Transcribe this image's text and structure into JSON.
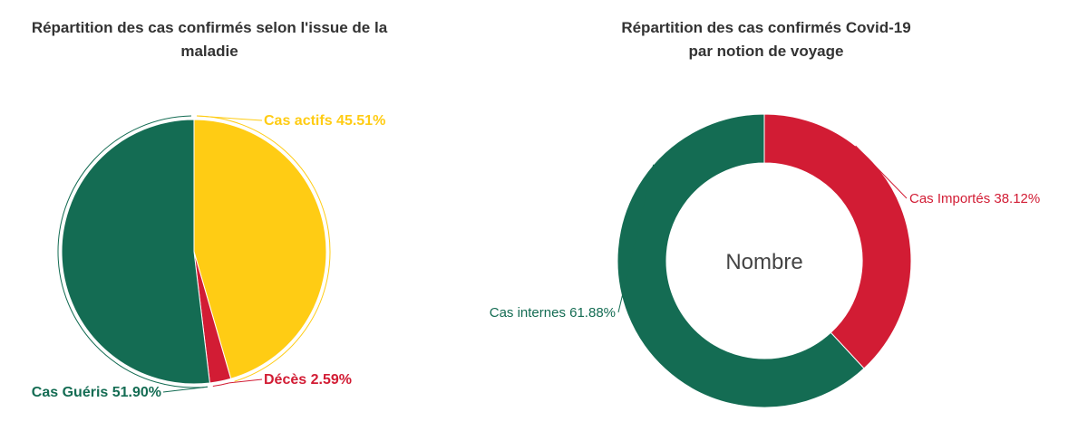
{
  "chart_data": [
    {
      "type": "pie",
      "title": "Répartition des cas confirmés selon l'issue de la maladie",
      "title_lines": [
        "Répartition des cas confirmés selon l'issue de la",
        "maladie"
      ],
      "slices": [
        {
          "label": "Cas actifs 45.51%",
          "value": 45.51,
          "color": "#FFCC14"
        },
        {
          "label": "Décès 2.59%",
          "value": 2.59,
          "color": "#D21C34"
        },
        {
          "label": "Cas Guéris 51.90%",
          "value": 51.9,
          "color": "#146C53"
        }
      ]
    },
    {
      "type": "pie",
      "variant": "donut",
      "title": "Répartition des cas confirmés Covid-19 par notion de voyage",
      "title_lines": [
        "Répartition des cas confirmés Covid-19",
        "par notion de voyage"
      ],
      "center_label": "Nombre",
      "slices": [
        {
          "label": "Cas Importés 38.12%",
          "value": 38.12,
          "color": "#D21C34"
        },
        {
          "label": "Cas internes 61.88%",
          "value": 61.88,
          "color": "#146C53"
        }
      ]
    }
  ]
}
